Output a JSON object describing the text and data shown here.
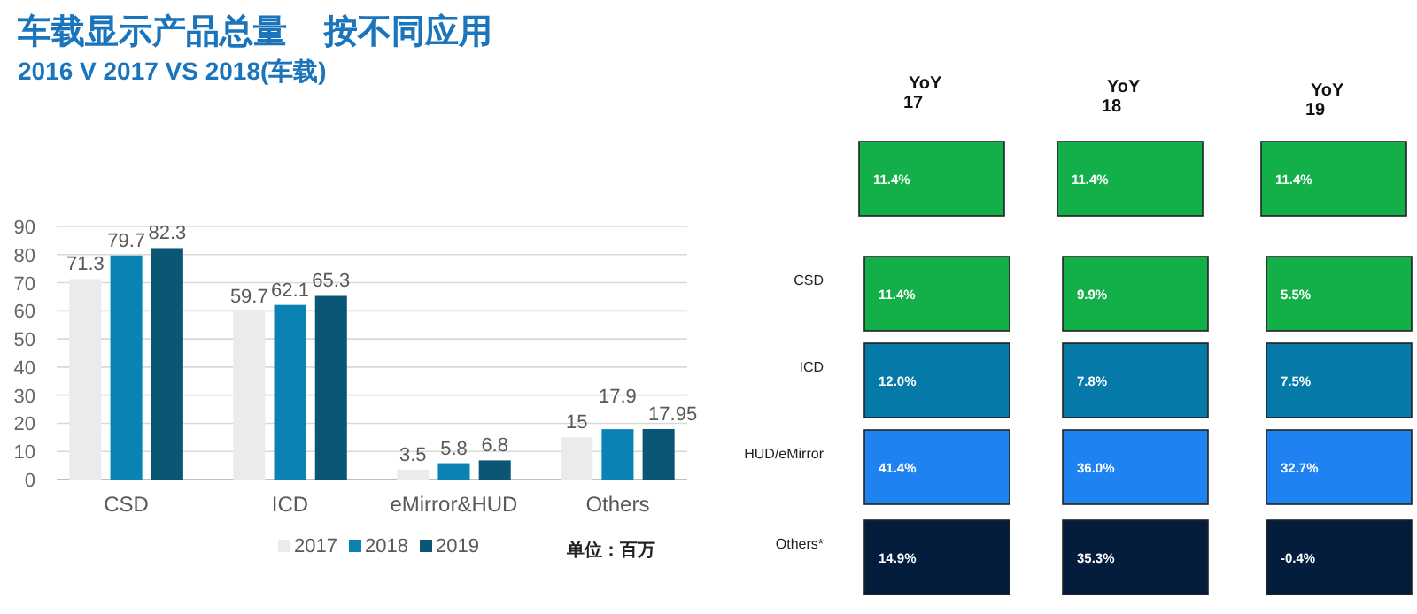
{
  "chart_data": [
    {
      "type": "bar",
      "title": "车载显示产品总量    按不同应用",
      "subtitle": "2016 V 2017 VS 2018(车载)",
      "categories": [
        "CSD",
        "ICD",
        "eMirror&HUD",
        "Others"
      ],
      "series": [
        {
          "name": "2017",
          "color": "#ebebeb",
          "values": [
            71.3,
            59.7,
            3.5,
            15
          ]
        },
        {
          "name": "2018",
          "color": "#0a83b4",
          "values": [
            79.7,
            62.1,
            5.8,
            17.9
          ]
        },
        {
          "name": "2019",
          "color": "#0b5575",
          "values": [
            82.3,
            65.3,
            6.8,
            17.95
          ]
        }
      ],
      "ylim": [
        0,
        90
      ],
      "yticks": [
        0,
        10,
        20,
        30,
        40,
        50,
        60,
        70,
        80,
        90
      ],
      "grid": "y",
      "legend": "bottom",
      "data_labels": true,
      "annotations": [
        "单位：百万"
      ]
    },
    {
      "type": "other",
      "categories": [
        "YoY 17",
        "YoY 18",
        "YoY 19"
      ],
      "y_categories": [
        null,
        "CSD",
        "ICD",
        "HUD/eMirror",
        "Others*"
      ],
      "cell_labels": [
        [
          "11.4%",
          "11.4%",
          "11.4%"
        ],
        [
          "11.4%",
          "9.9%",
          "5.5%"
        ],
        [
          "12.0%",
          "7.8%",
          "7.5%"
        ],
        [
          "41.4%",
          "36.0%",
          "32.7%"
        ],
        [
          "14.9%",
          "35.3%",
          "-0.4%"
        ]
      ],
      "colors": [
        "#13b04a",
        "#13b04a",
        "#0579a8",
        "#1e82f0",
        "#041d3d"
      ]
    }
  ]
}
